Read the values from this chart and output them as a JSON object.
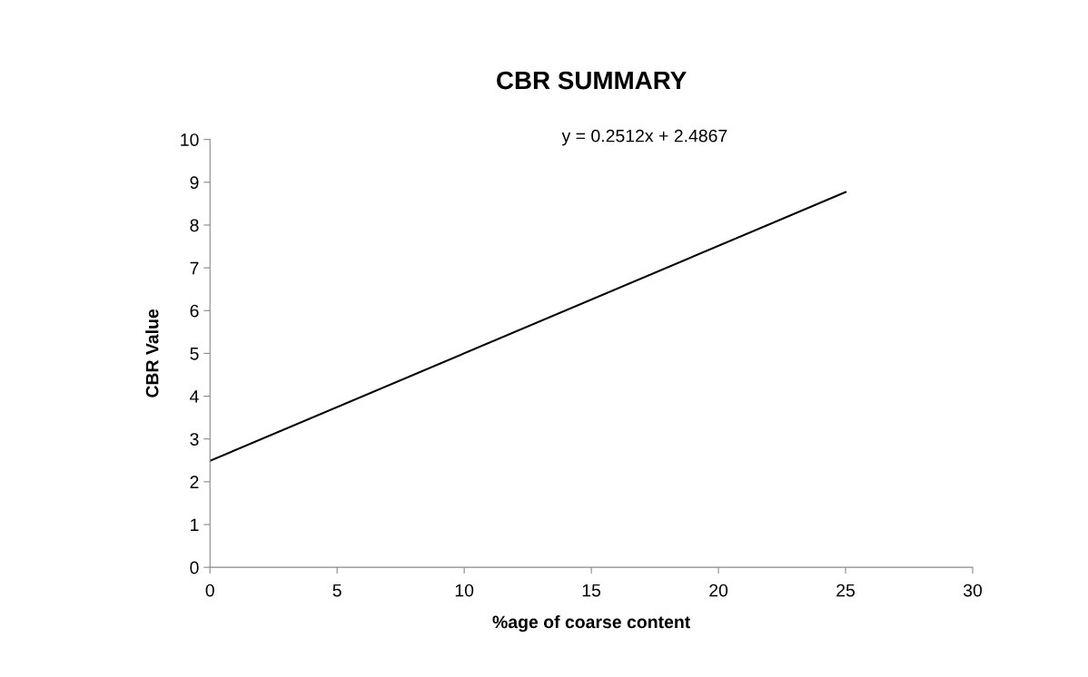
{
  "chart_data": {
    "type": "line",
    "title": "CBR SUMMARY",
    "xlabel": "%age of coarse content",
    "ylabel": "CBR Value",
    "series": [
      {
        "color": "#000000",
        "x": [
          0,
          25
        ],
        "values": [
          2.49,
          8.77
        ]
      }
    ],
    "annotations": [
      "y = 0.2512x + 2.4867"
    ],
    "xlim": [
      0,
      30
    ],
    "xticks": [
      0,
      5,
      10,
      15,
      20,
      25,
      30
    ],
    "ylim": [
      0,
      10
    ],
    "yticks": [
      0,
      1,
      2,
      3,
      4,
      5,
      6,
      7,
      8,
      9,
      10
    ],
    "grid": false,
    "legend": false,
    "marker": "none",
    "line_style": "solid"
  }
}
